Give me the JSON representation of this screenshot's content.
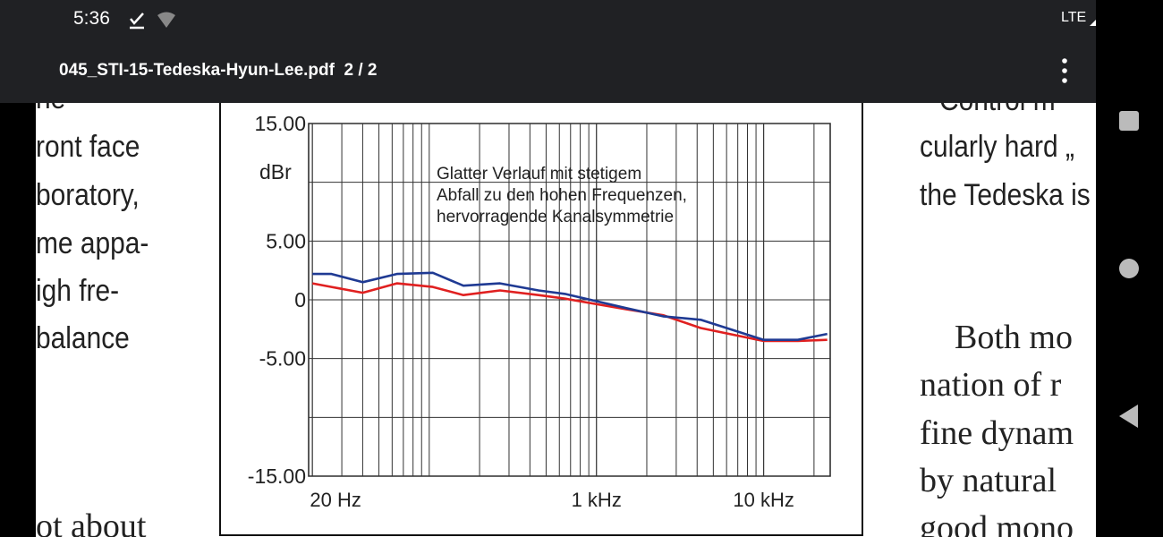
{
  "status_bar": {
    "time": "5:36",
    "network": "LTE"
  },
  "toolbar": {
    "file_name": "045_STI-15-Tedeska-Hyun-Lee.pdf",
    "page": "2 / 2"
  },
  "document": {
    "left_column": [
      "he",
      "ront face",
      "boratory,",
      "me appa-",
      "igh fre-",
      "balance",
      "ot about"
    ],
    "right_column": [
      "Control m",
      "cularly hard „",
      "the Tedeska is",
      "Both mo",
      "nation of r",
      "fine dynam",
      "by natural",
      "good mono"
    ]
  },
  "chart_data": {
    "type": "line",
    "y_label": "dBr",
    "annotation": [
      "Glatter Verlauf mit stetigem",
      "Abfall zu den hohen Frequenzen,",
      "hervorragende Kanalsymmetrie"
    ],
    "x": [
      20,
      26,
      40,
      64,
      105,
      160,
      265,
      450,
      650,
      1500,
      2500,
      4200,
      10000,
      16000,
      24000
    ],
    "series": [
      {
        "color": "#1f3a93",
        "values": [
          2.2,
          2.2,
          1.5,
          2.2,
          2.3,
          1.2,
          1.4,
          0.8,
          0.5,
          -0.7,
          -1.4,
          -1.7,
          -3.4,
          -3.4,
          -2.9
        ]
      },
      {
        "color": "#e02020",
        "values": [
          1.4,
          1.1,
          0.6,
          1.4,
          1.1,
          0.4,
          0.8,
          0.4,
          0.1,
          -0.8,
          -1.3,
          -2.4,
          -3.5,
          -3.5,
          -3.4
        ]
      }
    ],
    "xlim": [
      19,
      25000
    ],
    "log_x": true,
    "xticks": [
      {
        "value": 20,
        "label": "20 Hz"
      },
      {
        "value": 1000,
        "label": "1 kHz"
      },
      {
        "value": 10000,
        "label": "10 kHz"
      }
    ],
    "ylim": [
      -15,
      15
    ],
    "yticks": [
      {
        "value": 15,
        "label": "15.00"
      },
      {
        "value": 5,
        "label": "5.00"
      },
      0,
      {
        "value": -5,
        "label": "-5.00"
      },
      {
        "value": -15,
        "label": "-15.00"
      }
    ],
    "y_minor_ticks": [
      10,
      -10
    ],
    "grid": true
  }
}
